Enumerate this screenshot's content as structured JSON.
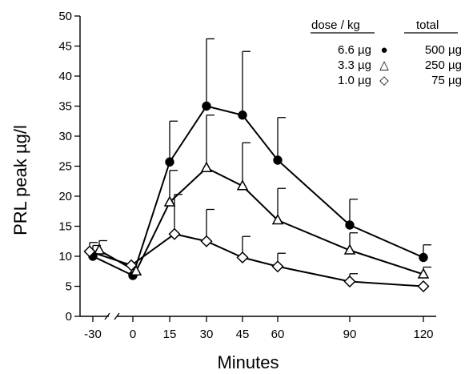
{
  "chart_data": {
    "type": "line",
    "xlabel": "Minutes",
    "ylabel": "PRL peak µg/l",
    "ylim": [
      0,
      50
    ],
    "yticks": [
      0,
      5,
      10,
      15,
      20,
      25,
      30,
      35,
      40,
      45,
      50
    ],
    "yticks_text": [
      "0",
      "5",
      "10",
      "15",
      "20",
      "25",
      "30",
      "35",
      "40",
      "45",
      "50"
    ],
    "xticks": [
      -30,
      0,
      15,
      30,
      45,
      60,
      90,
      120
    ],
    "xticks_text": [
      "-30",
      "0",
      "15",
      "30",
      "45",
      "60",
      "90",
      "120"
    ],
    "x_axis_break": "between -30 and 0",
    "legend": {
      "placement": "top-right",
      "header_left": "dose / kg",
      "header_right": "total",
      "entries": [
        {
          "dose": "6.6 µg",
          "total": "500 µg",
          "marker": "●"
        },
        {
          "dose": "3.3 µg",
          "total": "250 µg",
          "marker": "△"
        },
        {
          "dose": "1.0 µg",
          "total": "75 µg",
          "marker": "◇"
        }
      ]
    },
    "series": [
      {
        "marker": "filled-circle",
        "x": [
          -30,
          0,
          15,
          30,
          45,
          60,
          90,
          120
        ],
        "y": [
          10,
          6.8,
          25.7,
          35,
          33.5,
          26,
          15.2,
          9.8
        ],
        "err": [
          1.8,
          0,
          6.8,
          11.2,
          10.6,
          7.1,
          4.3,
          2.1
        ]
      },
      {
        "marker": "open-triangle",
        "x": [
          -30,
          0,
          15,
          30,
          45,
          60,
          90,
          120
        ],
        "y": [
          11,
          7.5,
          19,
          24.7,
          21.7,
          16,
          11,
          7
        ],
        "err": [
          1.6,
          0,
          5.3,
          8.8,
          7.2,
          5.3,
          2.9,
          1.2
        ]
      },
      {
        "marker": "open-diamond",
        "x": [
          -30,
          0,
          15,
          30,
          45,
          60,
          90,
          120
        ],
        "y": [
          10.8,
          8.5,
          13.7,
          12.5,
          9.8,
          8.3,
          5.8,
          5
        ],
        "err": [
          1.5,
          0,
          6.6,
          5.3,
          3.5,
          2.2,
          1.3,
          0
        ]
      }
    ]
  }
}
